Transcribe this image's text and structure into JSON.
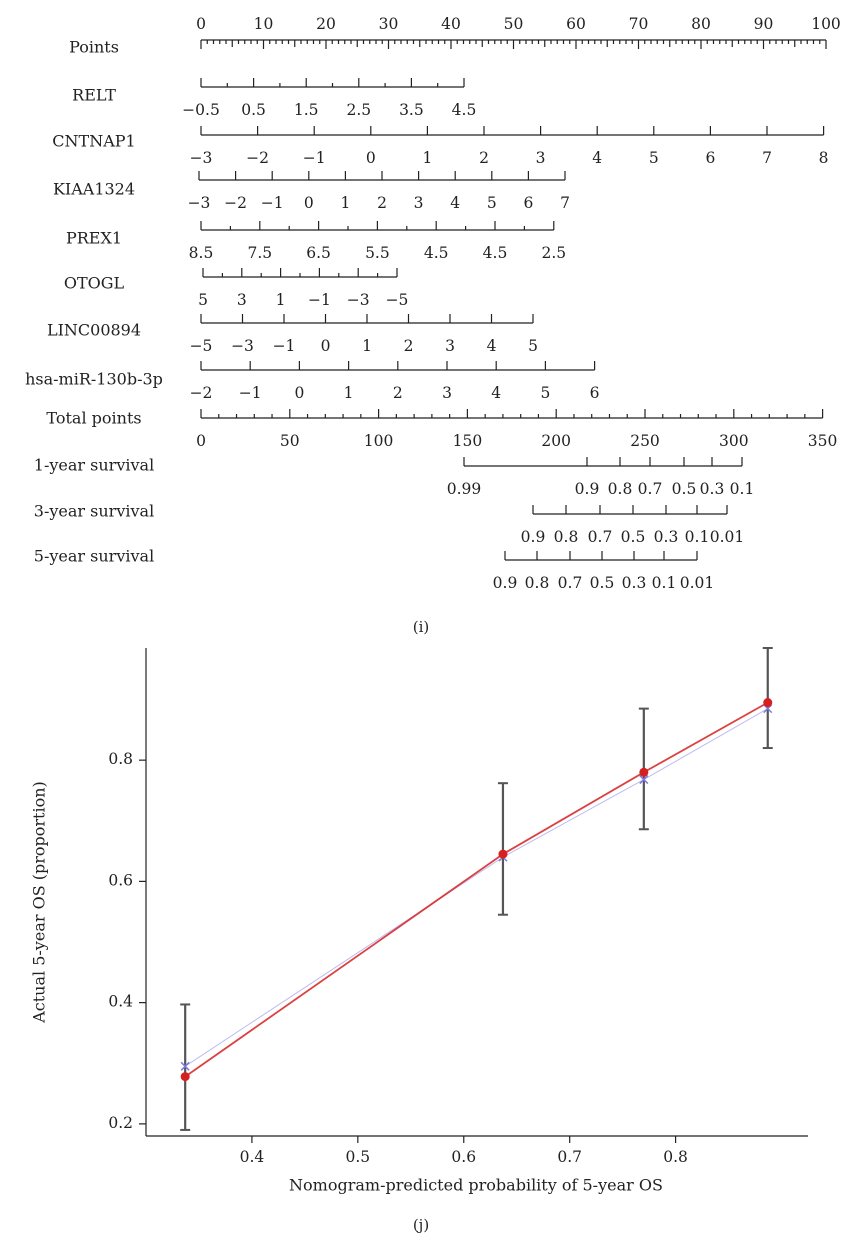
{
  "chart_data": [
    {
      "type": "nomogram",
      "caption": "(i)",
      "scales": [
        {
          "label": "Points",
          "x0": 0,
          "x1": 100,
          "labels": [
            "0",
            "10",
            "20",
            "30",
            "40",
            "50",
            "60",
            "70",
            "80",
            "90",
            "100"
          ],
          "label_side": "above"
        },
        {
          "label": "RELT",
          "labels": [
            "−0.5",
            "0.5",
            "1.5",
            "2.5",
            "3.5",
            "4.5"
          ]
        },
        {
          "label": "CNTNAP1",
          "labels": [
            "−3",
            "−2",
            "−1",
            "0",
            "1",
            "2",
            "3",
            "4",
            "5",
            "6",
            "7",
            "8"
          ]
        },
        {
          "label": "KIAA1324",
          "labels": [
            "−3",
            "−2",
            "−1",
            "0",
            "1",
            "2",
            "3",
            "4",
            "5",
            "6",
            "7"
          ]
        },
        {
          "label": "PREX1",
          "labels": [
            "8.5",
            "7.5",
            "6.5",
            "5.5",
            "4.5",
            "4.5",
            "2.5"
          ]
        },
        {
          "label": "OTOGL",
          "labels": [
            "5",
            "3",
            "1",
            "−1",
            "−3",
            "−5"
          ]
        },
        {
          "label": "LINC00894",
          "labels": [
            "−5",
            "−3",
            "−1",
            "0",
            "1",
            "2",
            "3",
            "4",
            "5"
          ]
        },
        {
          "label": "hsa-miR-130b-3p",
          "labels": [
            "−2",
            "−1",
            "0",
            "1",
            "2",
            "3",
            "4",
            "5",
            "6"
          ]
        },
        {
          "label": "Total points",
          "labels": [
            "0",
            "50",
            "100",
            "150",
            "200",
            "250",
            "300",
            "350"
          ]
        },
        {
          "label": "1-year survival",
          "labels": [
            "0.99",
            "0.9",
            "0.8",
            "0.7",
            "0.5",
            "0.3",
            "0.1"
          ]
        },
        {
          "label": "3-year survival",
          "labels": [
            "0.9",
            "0.8",
            "0.7",
            "0.5",
            "0.3",
            "0.1",
            "0.01"
          ]
        },
        {
          "label": "5-year survival",
          "labels": [
            "0.9",
            "0.8",
            "0.7",
            "0.5",
            "0.3",
            "0.1",
            "0.01"
          ]
        }
      ]
    },
    {
      "type": "scatter",
      "caption": "(j)",
      "xlabel": "Nomogram-predicted probability of 5-year OS",
      "ylabel": "Actual 5-year OS (proportion)",
      "xlim": [
        0.3,
        0.925
      ],
      "ylim": [
        0.18,
        0.985
      ],
      "xticks": [
        0.4,
        0.5,
        0.6,
        0.7,
        0.8
      ],
      "yticks": [
        0.2,
        0.4,
        0.6,
        0.8
      ],
      "grid": false,
      "colors": {
        "observed": "#d62020",
        "ideal": "#7a7ae0",
        "errorbar": "#555555"
      },
      "points": [
        {
          "x": 0.337,
          "observed": 0.278,
          "ideal": 0.295,
          "low": 0.19,
          "high": 0.397
        },
        {
          "x": 0.637,
          "observed": 0.645,
          "ideal": 0.64,
          "low": 0.545,
          "high": 0.762
        },
        {
          "x": 0.77,
          "observed": 0.78,
          "ideal": 0.768,
          "low": 0.686,
          "high": 0.885
        },
        {
          "x": 0.887,
          "observed": 0.895,
          "ideal": 0.885,
          "low": 0.82,
          "high": 0.985
        }
      ]
    }
  ]
}
